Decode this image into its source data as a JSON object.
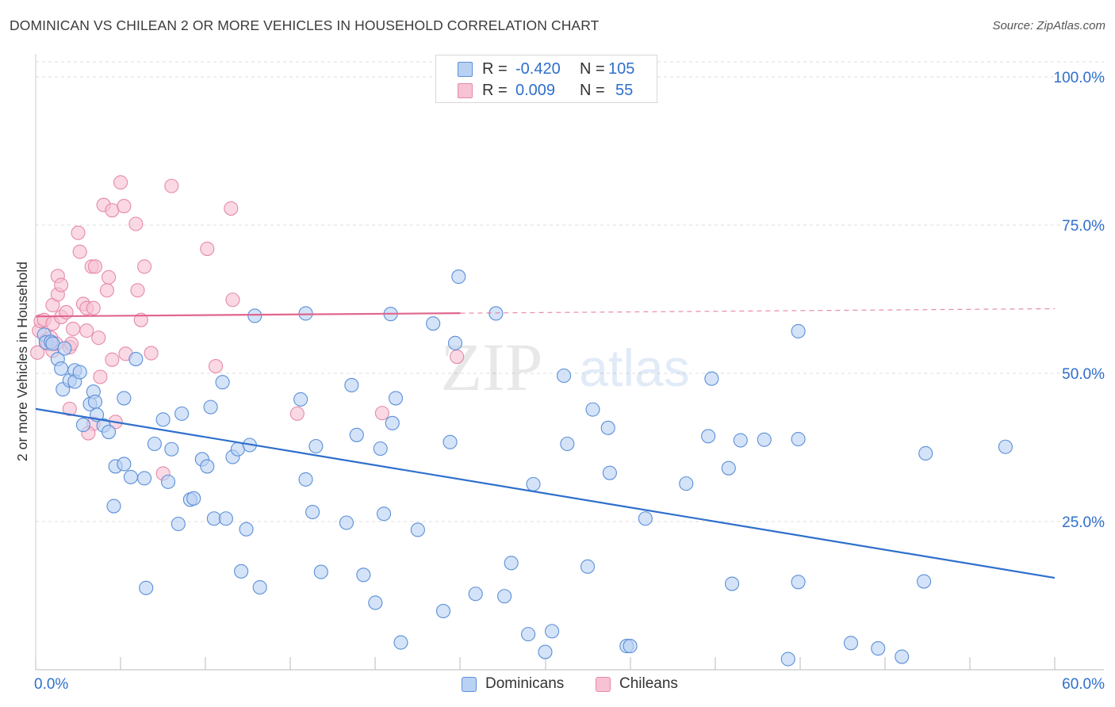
{
  "title": "DOMINICAN VS CHILEAN 2 OR MORE VEHICLES IN HOUSEHOLD CORRELATION CHART",
  "source": "Source: ZipAtlas.com",
  "watermark": {
    "zip": "ZIP",
    "atlas": "atlas"
  },
  "colors": {
    "blue_fill": "#b9d2f3",
    "blue_stroke": "#5b8fd8",
    "blue_line": "#2f6fcc",
    "pink_fill": "#f7c2d3",
    "pink_stroke": "#e58aa8",
    "pink_line": "#e0668e",
    "axis_text": "#2f6fcc",
    "grid": "#dddddd"
  },
  "legend": {
    "rows": [
      {
        "name": "Dominicans",
        "r_label": "R =",
        "r_value": "-0.420",
        "n_label": "N =",
        "n_value": "105"
      },
      {
        "name": "Chileans",
        "r_label": "R =",
        "r_value": "0.009",
        "n_label": "N =",
        "n_value": "55"
      }
    ]
  },
  "chart_data": {
    "type": "scatter",
    "title": "DOMINICAN VS CHILEAN 2 OR MORE VEHICLES IN HOUSEHOLD CORRELATION CHART",
    "xlabel": "",
    "ylabel": "2 or more Vehicles in Household",
    "xlim": [
      0,
      60
    ],
    "ylim": [
      0,
      100
    ],
    "x_tick_labels": [
      "0.0%",
      "60.0%"
    ],
    "y_tick_labels": [
      "25.0%",
      "50.0%",
      "75.0%",
      "100.0%"
    ],
    "y_ticks": [
      25,
      50,
      75,
      100
    ],
    "grid": true,
    "legend_position": "top-center",
    "series": [
      {
        "name": "Dominicans",
        "r": -0.42,
        "n": 105,
        "trend": {
          "x": [
            0,
            60
          ],
          "y": [
            44.0,
            15.5
          ],
          "dashed_from": null
        },
        "points": [
          [
            0.5,
            56.5
          ],
          [
            0.6,
            55.2
          ],
          [
            0.9,
            55.3
          ],
          [
            1.0,
            55.0
          ],
          [
            1.3,
            52.4
          ],
          [
            1.5,
            50.8
          ],
          [
            1.6,
            47.3
          ],
          [
            1.7,
            54.2
          ],
          [
            2.0,
            48.8
          ],
          [
            2.3,
            50.5
          ],
          [
            2.3,
            48.6
          ],
          [
            2.6,
            50.2
          ],
          [
            2.8,
            41.3
          ],
          [
            3.2,
            44.8
          ],
          [
            3.4,
            46.9
          ],
          [
            3.5,
            45.2
          ],
          [
            3.6,
            43.0
          ],
          [
            4.0,
            41.2
          ],
          [
            4.3,
            40.1
          ],
          [
            4.7,
            34.3
          ],
          [
            4.6,
            27.6
          ],
          [
            5.2,
            34.7
          ],
          [
            5.2,
            45.8
          ],
          [
            5.6,
            32.5
          ],
          [
            5.9,
            52.4
          ],
          [
            6.4,
            32.3
          ],
          [
            6.5,
            13.8
          ],
          [
            7.0,
            38.1
          ],
          [
            7.5,
            42.2
          ],
          [
            7.8,
            31.7
          ],
          [
            8.0,
            37.2
          ],
          [
            8.4,
            24.6
          ],
          [
            8.6,
            43.2
          ],
          [
            9.1,
            28.7
          ],
          [
            9.3,
            28.9
          ],
          [
            9.8,
            35.5
          ],
          [
            10.1,
            34.3
          ],
          [
            10.3,
            44.3
          ],
          [
            10.5,
            25.5
          ],
          [
            11.0,
            48.5
          ],
          [
            11.2,
            25.5
          ],
          [
            11.6,
            35.9
          ],
          [
            11.9,
            37.2
          ],
          [
            12.1,
            16.6
          ],
          [
            12.4,
            23.7
          ],
          [
            12.6,
            37.9
          ],
          [
            13.2,
            13.9
          ],
          [
            15.6,
            45.6
          ],
          [
            15.9,
            32.1
          ],
          [
            16.3,
            26.6
          ],
          [
            16.5,
            37.7
          ],
          [
            16.8,
            16.5
          ],
          [
            18.3,
            24.8
          ],
          [
            18.6,
            48.0
          ],
          [
            18.9,
            39.6
          ],
          [
            19.3,
            16.0
          ],
          [
            20.0,
            11.3
          ],
          [
            20.3,
            37.3
          ],
          [
            20.5,
            26.3
          ],
          [
            21.0,
            41.6
          ],
          [
            21.2,
            45.8
          ],
          [
            21.5,
            4.6
          ],
          [
            22.5,
            23.6
          ],
          [
            24.0,
            9.9
          ],
          [
            24.4,
            38.4
          ],
          [
            24.7,
            55.1
          ],
          [
            25.9,
            12.8
          ],
          [
            27.6,
            12.4
          ],
          [
            28.0,
            18.0
          ],
          [
            29.0,
            6.0
          ],
          [
            29.3,
            31.3
          ],
          [
            30.0,
            3.0
          ],
          [
            30.4,
            6.5
          ],
          [
            31.1,
            49.6
          ],
          [
            31.3,
            38.1
          ],
          [
            32.5,
            17.4
          ],
          [
            32.8,
            43.9
          ],
          [
            33.7,
            40.8
          ],
          [
            33.8,
            33.2
          ],
          [
            34.8,
            4.0
          ],
          [
            35.0,
            4.0
          ],
          [
            35.9,
            25.5
          ],
          [
            38.3,
            31.4
          ],
          [
            39.6,
            39.4
          ],
          [
            39.8,
            49.1
          ],
          [
            40.8,
            34.0
          ],
          [
            41.0,
            14.5
          ],
          [
            41.5,
            38.7
          ],
          [
            42.9,
            38.8
          ],
          [
            44.3,
            1.8
          ],
          [
            44.9,
            57.1
          ],
          [
            44.9,
            14.8
          ],
          [
            44.9,
            38.9
          ],
          [
            48.0,
            4.5
          ],
          [
            49.6,
            3.6
          ],
          [
            51.0,
            2.2
          ],
          [
            52.3,
            14.9
          ],
          [
            52.4,
            36.5
          ],
          [
            57.1,
            37.6
          ],
          [
            20.9,
            60.0
          ],
          [
            15.9,
            60.1
          ],
          [
            23.4,
            58.4
          ],
          [
            24.9,
            66.3
          ],
          [
            27.1,
            60.1
          ],
          [
            12.9,
            59.7
          ]
        ]
      },
      {
        "name": "Chileans",
        "r": 0.009,
        "n": 55,
        "trend": {
          "x": [
            0,
            60
          ],
          "y": [
            59.6,
            60.9
          ],
          "dashed_from": 25
        },
        "points": [
          [
            0.1,
            53.5
          ],
          [
            0.2,
            57.2
          ],
          [
            0.3,
            58.8
          ],
          [
            0.5,
            59.0
          ],
          [
            0.6,
            55.5
          ],
          [
            0.7,
            55.0
          ],
          [
            0.9,
            56.0
          ],
          [
            1.0,
            58.4
          ],
          [
            1.0,
            53.8
          ],
          [
            1.0,
            61.5
          ],
          [
            1.2,
            55.0
          ],
          [
            1.3,
            63.3
          ],
          [
            1.3,
            66.4
          ],
          [
            1.5,
            64.9
          ],
          [
            1.5,
            59.5
          ],
          [
            1.8,
            60.3
          ],
          [
            2.0,
            54.4
          ],
          [
            2.0,
            44.0
          ],
          [
            2.1,
            55.0
          ],
          [
            2.2,
            57.5
          ],
          [
            2.5,
            73.7
          ],
          [
            2.6,
            70.5
          ],
          [
            2.8,
            61.7
          ],
          [
            3.0,
            57.2
          ],
          [
            3.0,
            61.0
          ],
          [
            3.3,
            68.0
          ],
          [
            3.4,
            61.0
          ],
          [
            3.5,
            68.0
          ],
          [
            3.7,
            56.0
          ],
          [
            3.8,
            49.4
          ],
          [
            4.0,
            78.4
          ],
          [
            4.2,
            64.0
          ],
          [
            4.3,
            66.2
          ],
          [
            4.5,
            77.5
          ],
          [
            4.5,
            52.3
          ],
          [
            4.7,
            41.8
          ],
          [
            5.0,
            82.2
          ],
          [
            5.2,
            78.2
          ],
          [
            5.3,
            53.3
          ],
          [
            5.9,
            75.2
          ],
          [
            6.0,
            64.0
          ],
          [
            6.2,
            59.0
          ],
          [
            6.4,
            68.0
          ],
          [
            6.8,
            53.4
          ],
          [
            7.5,
            33.1
          ],
          [
            8.0,
            81.6
          ],
          [
            10.1,
            71.0
          ],
          [
            10.6,
            51.2
          ],
          [
            11.5,
            77.8
          ],
          [
            11.6,
            62.4
          ],
          [
            15.4,
            43.2
          ],
          [
            20.4,
            43.3
          ],
          [
            24.8,
            52.8
          ],
          [
            3.4,
            41.5
          ],
          [
            3.1,
            39.9
          ]
        ]
      }
    ]
  },
  "bottom_legend": [
    "Dominicans",
    "Chileans"
  ]
}
